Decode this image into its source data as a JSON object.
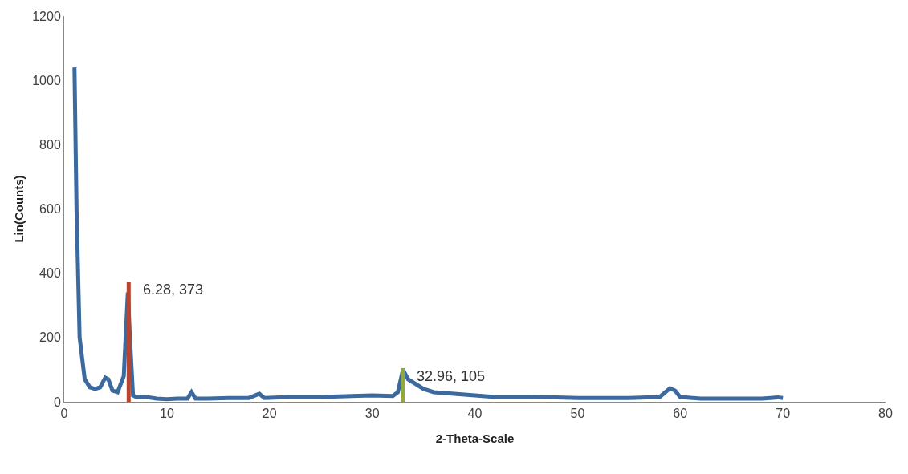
{
  "chart_data": {
    "type": "line",
    "xlabel": "2-Theta-Scale",
    "ylabel": "Lin(Counts)",
    "xlim": [
      0,
      80
    ],
    "xticks": [
      0,
      10,
      20,
      30,
      40,
      50,
      60,
      70,
      80
    ],
    "ylim": [
      0,
      1200
    ],
    "yticks": [
      0,
      200,
      400,
      600,
      800,
      1000,
      1200
    ],
    "grid": false,
    "marker": "none",
    "line_style": "solid",
    "series": [
      {
        "color": "#3d6a9e",
        "x": [
          1,
          1.2,
          1.5,
          2,
          2.5,
          3,
          3.5,
          4,
          4.3,
          4.7,
          5.2,
          5.8,
          6.2,
          6.4,
          6.7,
          7,
          8,
          9,
          10,
          11,
          12,
          12.4,
          12.8,
          14,
          16,
          18,
          19,
          19.5,
          22,
          25,
          28,
          30,
          32,
          32.5,
          33,
          33.5,
          34,
          35,
          36,
          38,
          40,
          42,
          45,
          48,
          50,
          55,
          58,
          59,
          59.5,
          60,
          62,
          65,
          68,
          69.5,
          70
        ],
        "values": [
          1040,
          600,
          200,
          70,
          45,
          40,
          45,
          75,
          70,
          35,
          30,
          80,
          340,
          200,
          20,
          15,
          15,
          10,
          8,
          10,
          10,
          30,
          10,
          10,
          12,
          12,
          25,
          12,
          15,
          15,
          18,
          20,
          18,
          30,
          100,
          70,
          60,
          40,
          30,
          25,
          20,
          15,
          15,
          14,
          12,
          12,
          15,
          42,
          35,
          15,
          10,
          10,
          10,
          14,
          12
        ]
      },
      {
        "color": "#b8432e",
        "x": [
          6.28,
          6.28
        ],
        "values": [
          0,
          373
        ]
      },
      {
        "color": "#8faa3c",
        "x": [
          32.96,
          32.96
        ],
        "values": [
          0,
          105
        ]
      }
    ],
    "annotations": [
      {
        "text": "6.28, 373",
        "x": 6.28,
        "y": 373
      },
      {
        "text": "32.96, 105",
        "x": 32.96,
        "y": 105
      }
    ]
  }
}
